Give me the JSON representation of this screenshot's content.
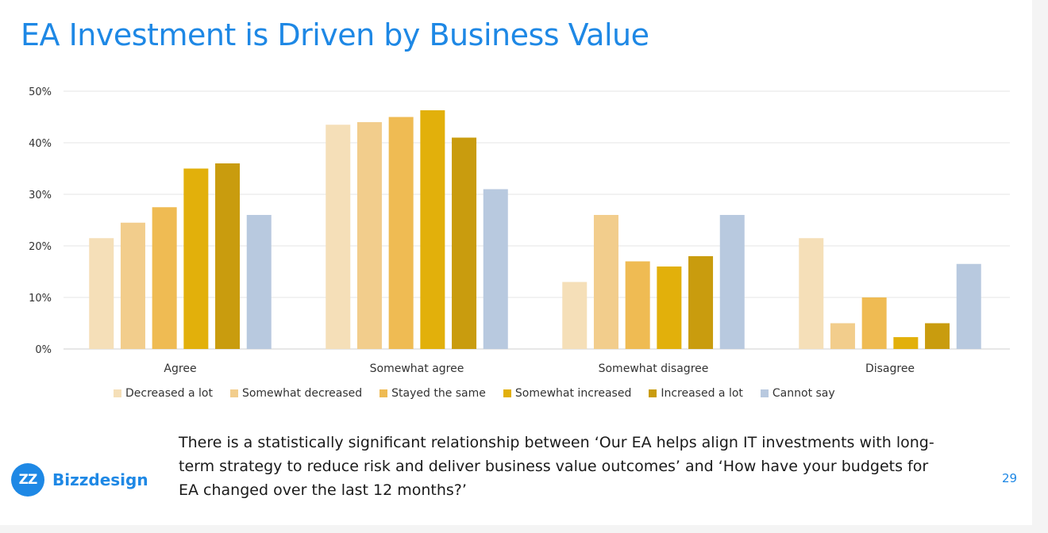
{
  "title": "EA Investment is Driven by Business Value",
  "chart_data": {
    "type": "bar",
    "categories": [
      "Agree",
      "Somewhat agree",
      "Somewhat disagree",
      "Disagree"
    ],
    "series": [
      {
        "name": "Decreased a lot",
        "color": "#f5dfb8",
        "values": [
          21.5,
          43.5,
          13,
          21.5
        ]
      },
      {
        "name": "Somewhat decreased",
        "color": "#f2cd8c",
        "values": [
          24.5,
          44,
          26,
          5
        ]
      },
      {
        "name": "Stayed the same",
        "color": "#efbb53",
        "values": [
          27.5,
          45,
          17,
          10
        ]
      },
      {
        "name": "Somewhat increased",
        "color": "#e2b00b",
        "values": [
          35,
          46.3,
          16,
          2.3
        ]
      },
      {
        "name": "Increased a lot",
        "color": "#c99c0e",
        "values": [
          36,
          41,
          18,
          5
        ]
      },
      {
        "name": "Cannot say",
        "color": "#b8c9df",
        "values": [
          26,
          31,
          26,
          16.5
        ]
      }
    ],
    "yticks": [
      "0%",
      "10%",
      "20%",
      "30%",
      "40%",
      "50%"
    ],
    "ylim": [
      0,
      50
    ],
    "grid": true,
    "legend_position": "bottom"
  },
  "note": "There is a statistically significant relationship between ‘Our EA helps align IT investments with long-term strategy to reduce risk and deliver business value outcomes’ and ‘How have your budgets for EA changed over the last 12 months?’",
  "logo": {
    "mark": "ZZ",
    "text": "Bizzdesign"
  },
  "page_number": "29"
}
